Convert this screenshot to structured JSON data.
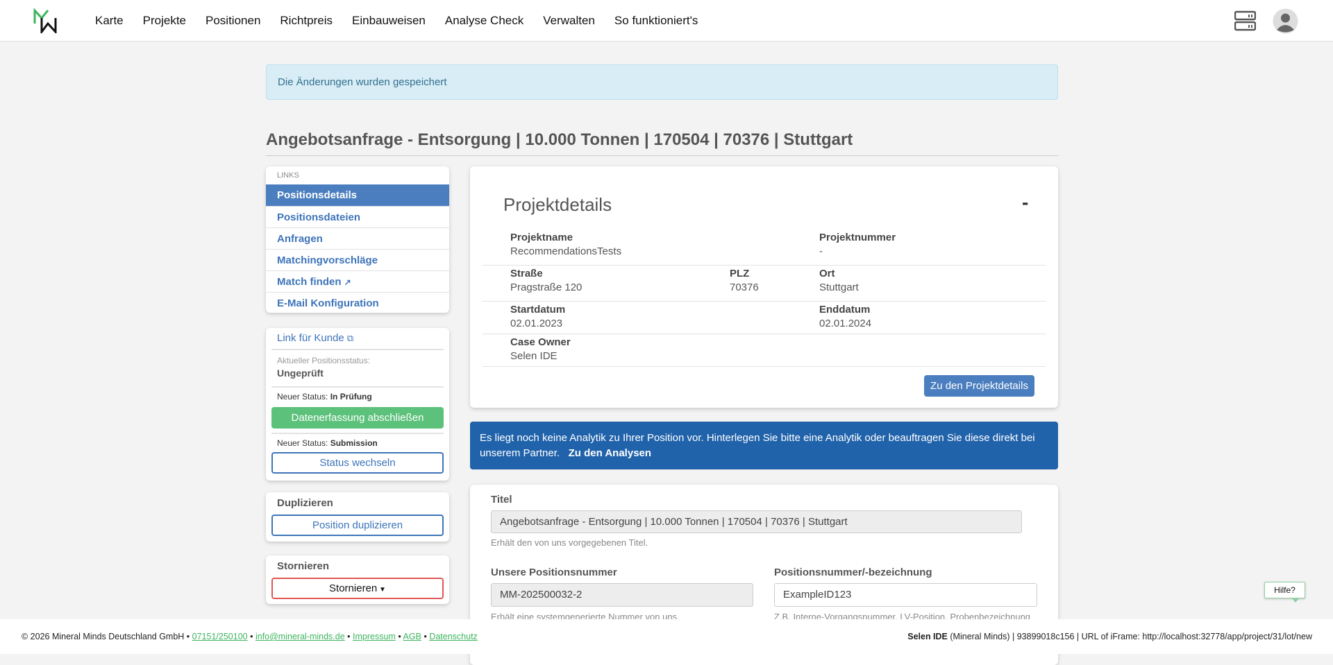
{
  "nav": {
    "items": [
      "Karte",
      "Projekte",
      "Positionen",
      "Richtpreis",
      "Einbauweisen",
      "Analyse Check",
      "Verwalten",
      "So funktioniert's"
    ]
  },
  "alert": {
    "text": "Die Änderungen wurden gespeichert"
  },
  "page": {
    "title": "Angebotsanfrage - Entsorgung | 10.000 Tonnen | 170504 | 70376 | Stuttgart"
  },
  "sidebar": {
    "links_header": "LINKS",
    "items": [
      {
        "label": "Positionsdetails"
      },
      {
        "label": "Positionsdateien"
      },
      {
        "label": "Anfragen"
      },
      {
        "label": "Matchingvorschläge"
      },
      {
        "label": "Match finden"
      },
      {
        "label": "E-Mail Konfiguration"
      }
    ],
    "customer_link": "Link für Kunde",
    "current_status_label": "Aktueller Positionsstatus:",
    "current_status": "Ungeprüft",
    "new_status_prefix": "Neuer Status:",
    "new_status_1": "In Prüfung",
    "complete_button": "Datenerfassung abschließen",
    "new_status_2": "Submission",
    "change_status_button": "Status wechseln",
    "duplicate_title": "Duplizieren",
    "duplicate_button": "Position duplizieren",
    "cancel_title": "Stornieren",
    "cancel_button": "Stornieren"
  },
  "project": {
    "title": "Projektdetails",
    "collapse": "-",
    "name_label": "Projektname",
    "name": "RecommendationsTests",
    "number_label": "Projektnummer",
    "number": "-",
    "street_label": "Straße",
    "street": "Pragstraße 120",
    "zip_label": "PLZ",
    "zip": "70376",
    "city_label": "Ort",
    "city": "Stuttgart",
    "start_label": "Startdatum",
    "start": "02.01.2023",
    "end_label": "Enddatum",
    "end": "02.01.2024",
    "owner_label": "Case Owner",
    "owner": "Selen IDE",
    "button": "Zu den Projektdetails"
  },
  "analytics": {
    "text": "Es liegt noch keine Analytik zu Ihrer Position vor. Hinterlegen Sie bitte eine Analytik oder beauftragen Sie diese direkt bei unserem Partner.",
    "link": "Zu den Analysen"
  },
  "form": {
    "title_label": "Titel",
    "title_value": "Angebotsanfrage - Entsorgung | 10.000 Tonnen | 170504 | 70376 | Stuttgart",
    "title_help": "Erhält den von uns vorgegebenen Titel.",
    "our_number_label": "Unsere Positionsnummer",
    "our_number_value": "MM-202500032-2",
    "our_number_help": "Erhält eine systemgenerierte Nummer von uns.",
    "pos_number_label": "Positionsnummer/-bezeichnung",
    "pos_number_value": "ExampleID123",
    "pos_number_help": "Z.B. Interne-Vorgangsnummer, LV-Position, Probenbezeichnung"
  },
  "help_button": "Hilfe?",
  "footer": {
    "copyright": "© 2026 Mineral Minds Deutschland GmbH •",
    "phone": "07151/250100",
    "email": "info@mineral-minds.de",
    "impressum": "Impressum",
    "agb": "AGB",
    "datenschutz": "Datenschutz",
    "sep": "•",
    "user": "Selen IDE",
    "right_text": "(Mineral Minds) | 93899018c156 | URL of iFrame: http://localhost:32778/app/project/31/lot/new"
  },
  "colors": {
    "brand_green": "#3cb55e",
    "primary": "#4a7ebf",
    "info_blue": "#2163ab",
    "success": "#5cc17a",
    "danger": "#e05555"
  }
}
